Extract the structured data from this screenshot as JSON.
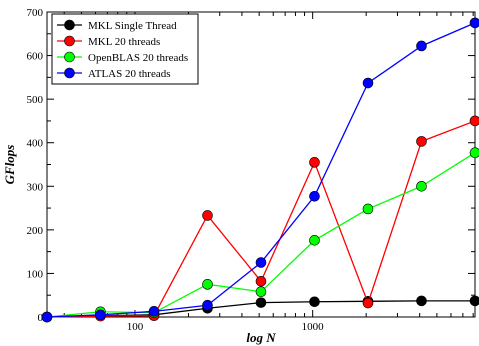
{
  "chart_data": {
    "type": "line",
    "title": "",
    "xlabel": "log N",
    "ylabel": "GFlops",
    "x_scale": "log",
    "xlim": [
      32,
      8192
    ],
    "ylim": [
      0,
      700
    ],
    "x_ticks": [
      {
        "value": 100,
        "label": "100"
      },
      {
        "value": 1000,
        "label": "1000"
      }
    ],
    "y_ticks": [
      {
        "value": 0,
        "label": "0"
      },
      {
        "value": 100,
        "label": "100"
      },
      {
        "value": 200,
        "label": "200"
      },
      {
        "value": 300,
        "label": "300"
      },
      {
        "value": 400,
        "label": "400"
      },
      {
        "value": 500,
        "label": "500"
      },
      {
        "value": 600,
        "label": "600"
      },
      {
        "value": 700,
        "label": "700"
      }
    ],
    "grid": false,
    "legend_position": "top-left",
    "x": [
      32,
      64,
      128,
      256,
      512,
      1024,
      2048,
      4096,
      8192
    ],
    "series": [
      {
        "name": "MKL Single Thread",
        "color": "#000000",
        "values": [
          0,
          3,
          5,
          20,
          33,
          35,
          36,
          37,
          37
        ]
      },
      {
        "name": "MKL 20 threads",
        "color": "#ff0000",
        "values": [
          0,
          2,
          3,
          233,
          82,
          355,
          32,
          403,
          450
        ]
      },
      {
        "name": "OpenBLAS 20 threads",
        "color": "#00ff00",
        "values": [
          0,
          12,
          10,
          75,
          58,
          176,
          248,
          300,
          377
        ]
      },
      {
        "name": "ATLAS 20 threads",
        "color": "#0000ff",
        "values": [
          0,
          5,
          13,
          27,
          125,
          277,
          537,
          622,
          675
        ]
      }
    ]
  }
}
